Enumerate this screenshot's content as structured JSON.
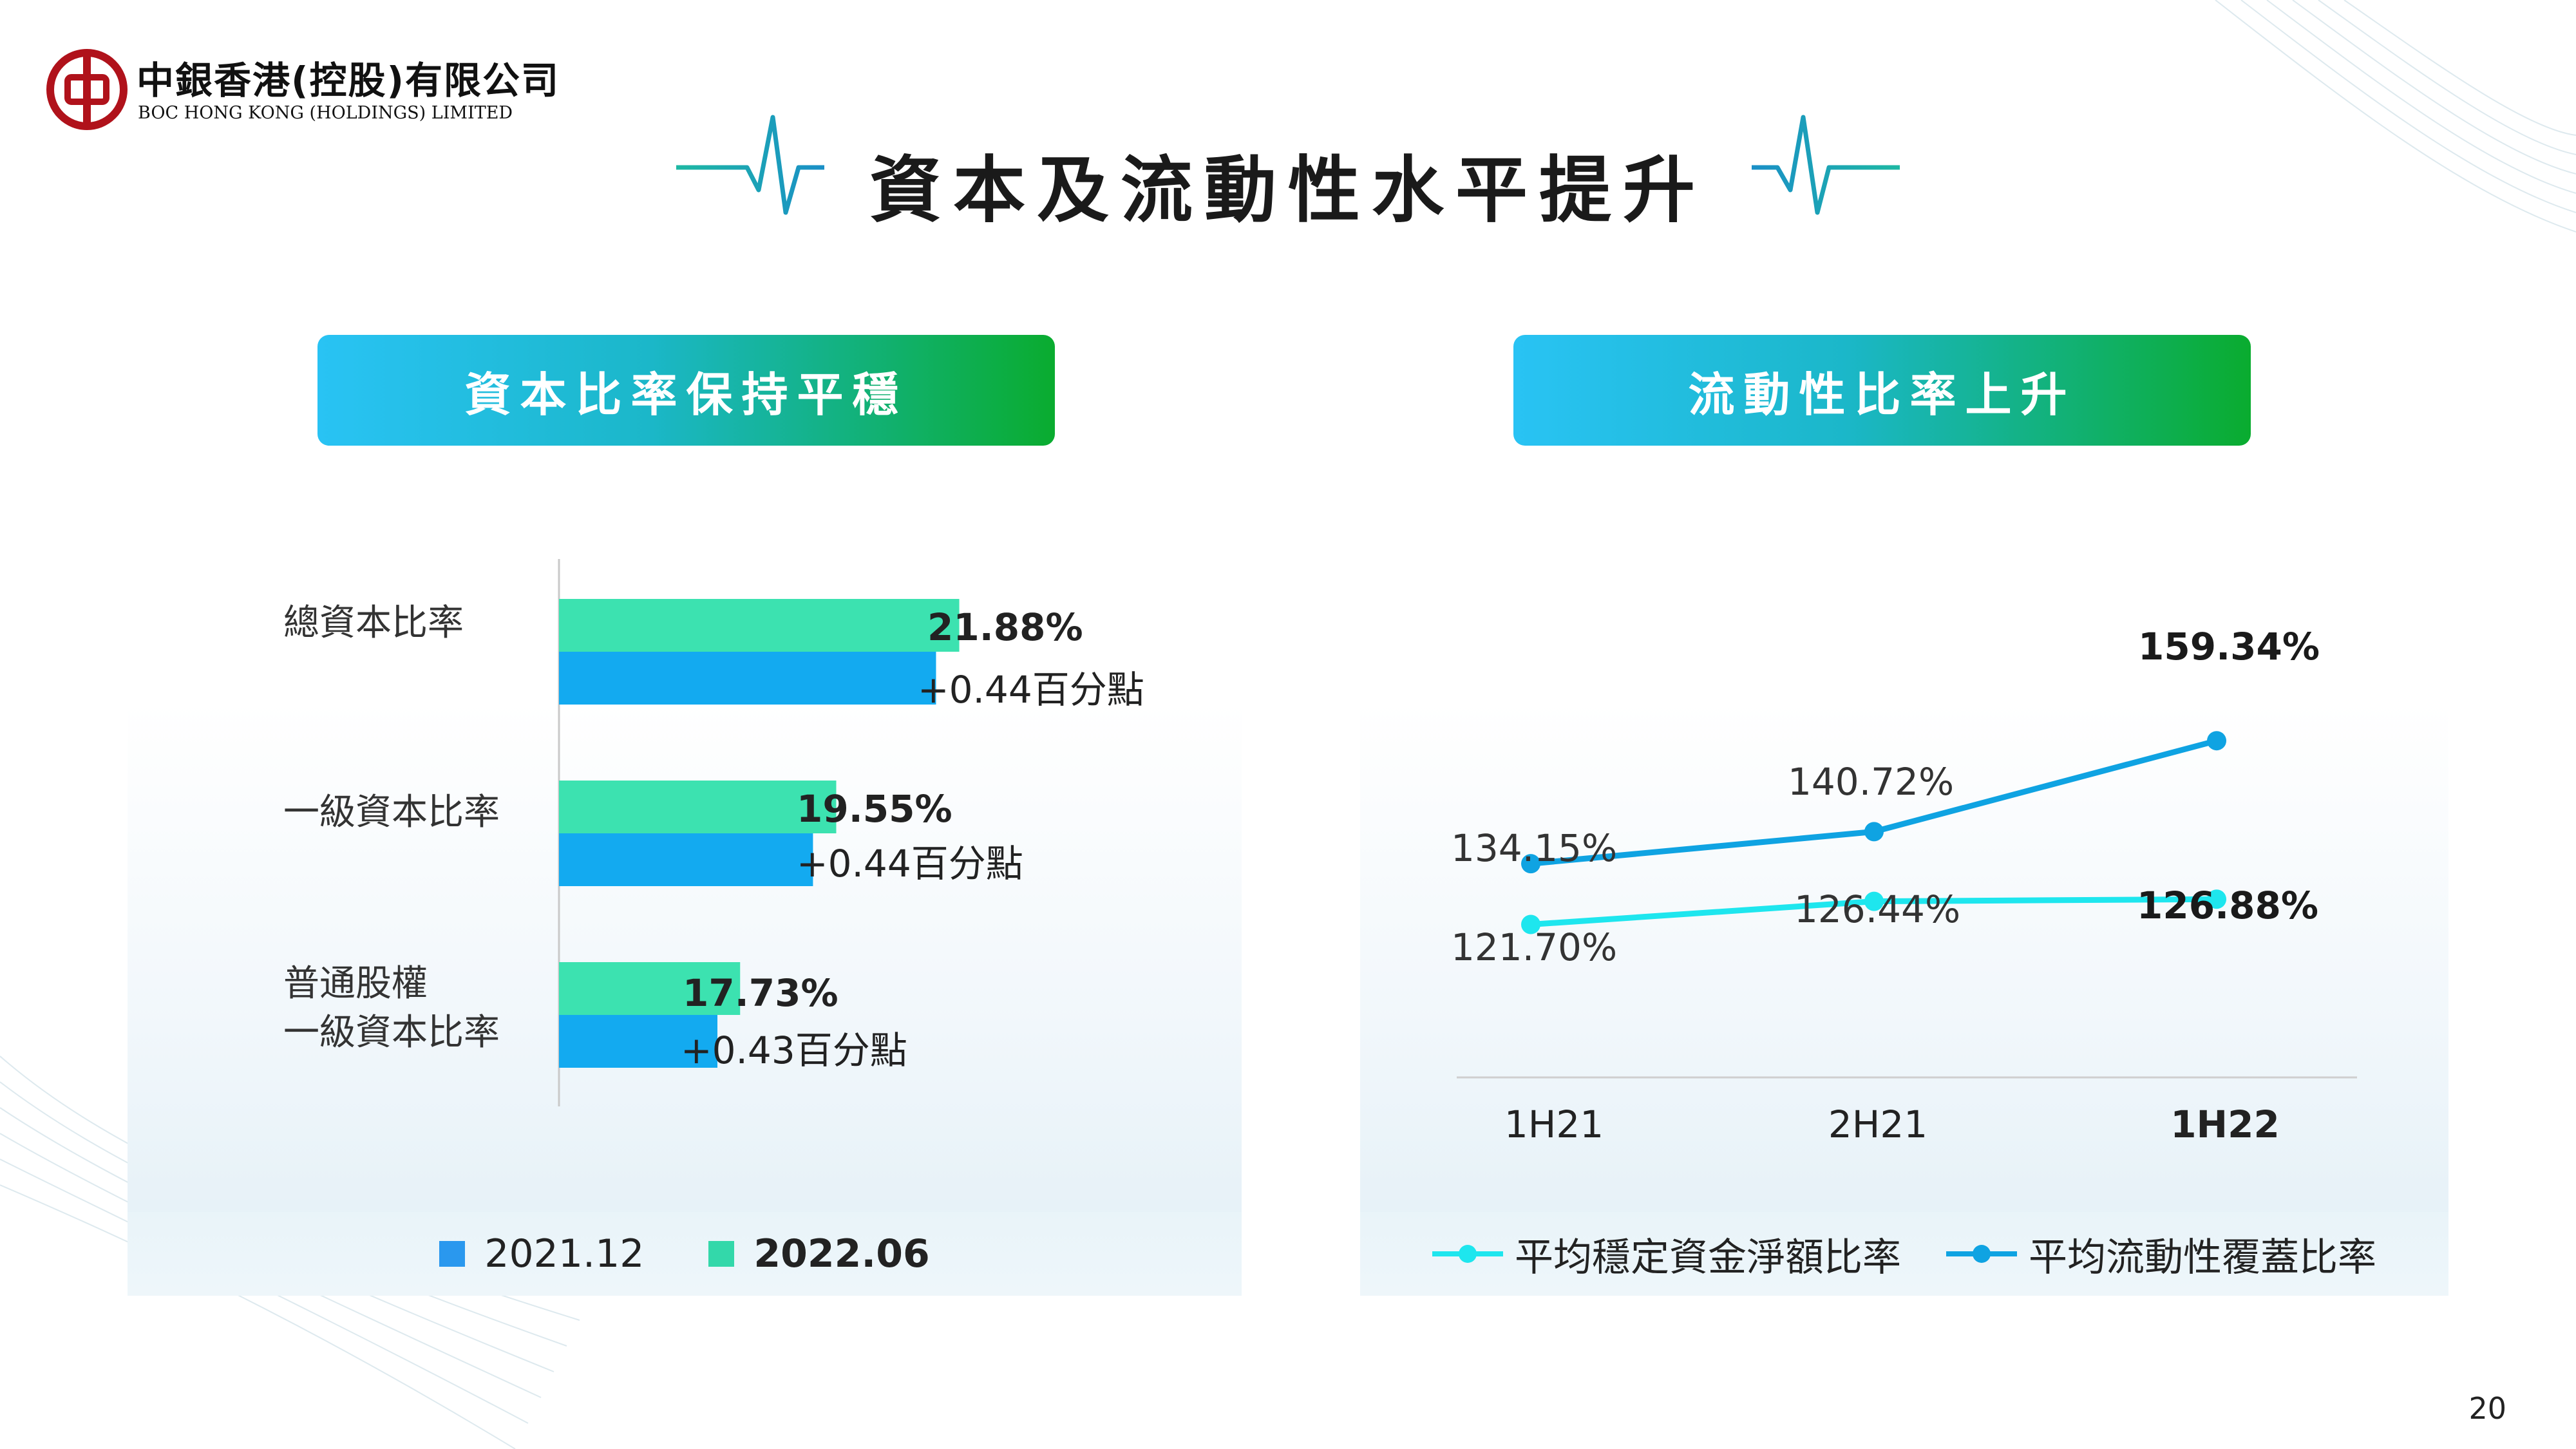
{
  "brand": {
    "name_cn": "中銀香港(控股)有限公司",
    "name_en": "BOC HONG KONG (HOLDINGS) LIMITED",
    "logo_color": "#b0121b"
  },
  "title": "資本及流動性水平提升",
  "page_number": "20",
  "colors": {
    "bar_2021": "#13aaf0",
    "bar_2022": "#3ce2b0",
    "line_nsfr": "#1ee6ee",
    "line_lcr": "#0fa3e2",
    "header_gradient_start": "#29c3f4",
    "header_gradient_end": "#0aac2f"
  },
  "left_panel": {
    "header": "資本比率保持平穩",
    "categories": [
      {
        "label_lines": [
          "總資本比率"
        ],
        "value_text": "21.88%",
        "change_text": "+0.44百分點"
      },
      {
        "label_lines": [
          "一級資本比率"
        ],
        "value_text": "19.55%",
        "change_text": "+0.44百分點"
      },
      {
        "label_lines": [
          "普通股權",
          "一級資本比率"
        ],
        "value_text": "17.73%",
        "change_text": "+0.43百分點"
      }
    ],
    "legend": [
      {
        "label": "2021.12",
        "color": "#2a98ee",
        "bold": false
      },
      {
        "label": "2022.06",
        "color": "#33d8aa",
        "bold": true
      }
    ]
  },
  "right_panel": {
    "header": "流動性比率上升",
    "x_labels": [
      "1H21",
      "2H21",
      "1H22"
    ],
    "point_labels": {
      "lcr": [
        "134.15%",
        "140.72%",
        "159.34%"
      ],
      "nsfr": [
        "121.70%",
        "126.44%",
        "126.88%"
      ]
    },
    "legend": [
      {
        "label": "平均穩定資金淨額比率",
        "color": "#1ee6ee"
      },
      {
        "label": "平均流動性覆蓋比率",
        "color": "#0fa3e2"
      }
    ]
  },
  "chart_data": [
    {
      "type": "bar",
      "orientation": "horizontal",
      "title": "資本比率保持平穩",
      "categories": [
        "總資本比率",
        "一級資本比率",
        "普通股權 一級資本比率"
      ],
      "series": [
        {
          "name": "2021.12",
          "values": [
            21.44,
            19.11,
            17.3
          ]
        },
        {
          "name": "2022.06",
          "values": [
            21.88,
            19.55,
            17.73
          ]
        }
      ],
      "xlim": [
        14.3,
        23.0
      ],
      "legend": "bottom"
    },
    {
      "type": "line",
      "title": "流動性比率上升",
      "categories": [
        "1H21",
        "2H21",
        "1H22"
      ],
      "series": [
        {
          "name": "平均流動性覆蓋比率",
          "values": [
            134.15,
            140.72,
            159.34
          ]
        },
        {
          "name": "平均穩定資金淨額比率",
          "values": [
            121.7,
            126.44,
            126.88
          ]
        }
      ],
      "ylim": [
        100,
        168
      ],
      "legend": "bottom"
    }
  ]
}
